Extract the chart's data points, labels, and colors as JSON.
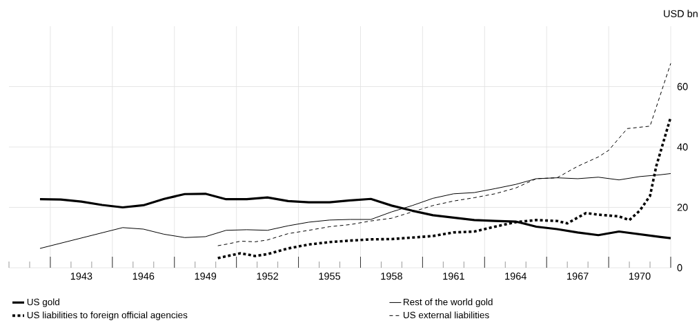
{
  "chart_data": {
    "type": "line",
    "ylabel": "USD bn",
    "xlim": [
      1939.5,
      1971.5
    ],
    "ylim": [
      0,
      80
    ],
    "xticks": [
      {
        "value": 1943,
        "label": "1943"
      },
      {
        "value": 1946,
        "label": "1946"
      },
      {
        "value": 1949,
        "label": "1949"
      },
      {
        "value": 1952,
        "label": "1952"
      },
      {
        "value": 1955,
        "label": "1955"
      },
      {
        "value": 1958,
        "label": "1958"
      },
      {
        "value": 1961,
        "label": "1961"
      },
      {
        "value": 1964,
        "label": "1964"
      },
      {
        "value": 1967,
        "label": "1967"
      },
      {
        "value": 1970,
        "label": "1970"
      },
      {
        "value": 1939.5,
        "label": null
      },
      {
        "value": 1940.5,
        "label": null
      },
      {
        "value": 1941.5,
        "label": null
      },
      {
        "value": 1942.5,
        "label": null
      },
      {
        "value": 1943.5,
        "label": null
      },
      {
        "value": 1944.5,
        "label": null
      },
      {
        "value": 1945.5,
        "label": null
      },
      {
        "value": 1946.5,
        "label": null
      },
      {
        "value": 1947.5,
        "label": null
      },
      {
        "value": 1948.5,
        "label": null
      },
      {
        "value": 1949.5,
        "label": null
      },
      {
        "value": 1950.5,
        "label": null
      },
      {
        "value": 1951.5,
        "label": null
      },
      {
        "value": 1952.5,
        "label": null
      },
      {
        "value": 1953.5,
        "label": null
      },
      {
        "value": 1954.5,
        "label": null
      },
      {
        "value": 1955.5,
        "label": null
      },
      {
        "value": 1956.5,
        "label": null
      },
      {
        "value": 1957.5,
        "label": null
      },
      {
        "value": 1958.5,
        "label": null
      },
      {
        "value": 1959.5,
        "label": null
      },
      {
        "value": 1960.5,
        "label": null
      },
      {
        "value": 1961.5,
        "label": null
      },
      {
        "value": 1962.5,
        "label": null
      },
      {
        "value": 1963.5,
        "label": null
      },
      {
        "value": 1964.5,
        "label": null
      },
      {
        "value": 1965.5,
        "label": null
      },
      {
        "value": 1966.5,
        "label": null
      },
      {
        "value": 1967.5,
        "label": null
      },
      {
        "value": 1968.5,
        "label": null
      },
      {
        "value": 1969.5,
        "label": null
      },
      {
        "value": 1970.5,
        "label": null
      },
      {
        "value": 1971.5,
        "label": null
      }
    ],
    "yticks": [
      0,
      20,
      40,
      60
    ],
    "grid": true,
    "legend": "bottom",
    "marker": "none",
    "series": [
      {
        "name": "US gold",
        "color": "#000000",
        "line_style": "solid",
        "x": [
          1941,
          1942,
          1943,
          1944,
          1945,
          1946,
          1947,
          1948,
          1949,
          1950,
          1951,
          1952,
          1953,
          1954,
          1955,
          1956,
          1957,
          1958,
          1959,
          1960,
          1961,
          1962,
          1963,
          1964,
          1965,
          1966,
          1967,
          1968,
          1969,
          1970,
          1971,
          1971.5
        ],
        "values": [
          22.7,
          22.6,
          21.9,
          20.8,
          20.0,
          20.7,
          22.8,
          24.4,
          24.5,
          22.7,
          22.7,
          23.3,
          22.1,
          21.7,
          21.7,
          22.3,
          22.8,
          20.6,
          18.9,
          17.4,
          16.6,
          15.8,
          15.5,
          15.3,
          13.6,
          12.8,
          11.7,
          10.8,
          12.0,
          11.1,
          10.2,
          9.8
        ]
      },
      {
        "name": "Rest of the world gold",
        "color": "#000000",
        "line_style": "solid",
        "x": [
          1941,
          1945,
          1946,
          1947,
          1948,
          1949,
          1950,
          1951,
          1952,
          1953,
          1954,
          1955,
          1956,
          1957,
          1958,
          1959,
          1960,
          1961,
          1962,
          1963,
          1964,
          1965,
          1966,
          1967,
          1968,
          1969,
          1970,
          1971,
          1971.5
        ],
        "values": [
          6.4,
          13.3,
          12.8,
          11.1,
          10.0,
          10.3,
          12.4,
          12.6,
          12.4,
          13.9,
          15.1,
          15.8,
          16.0,
          16.0,
          18.5,
          20.6,
          23.0,
          24.5,
          24.9,
          26.2,
          27.6,
          29.5,
          29.8,
          29.5,
          30.0,
          29.1,
          30.2,
          30.8,
          31.2
        ]
      },
      {
        "name": "US liabilities to foreign official agencies",
        "color": "#000000",
        "line_style": "dotted",
        "x": [
          1949.6,
          1950.7,
          1951.4,
          1952,
          1953,
          1954,
          1955,
          1956,
          1957,
          1958,
          1959,
          1960,
          1961,
          1962,
          1963,
          1964,
          1965,
          1966,
          1966.5,
          1967,
          1967.4,
          1968,
          1969,
          1969.5,
          1970,
          1970.5,
          1970.8,
          1971.5
        ],
        "values": [
          3.2,
          4.8,
          3.9,
          4.5,
          6.4,
          7.7,
          8.5,
          9.0,
          9.4,
          9.5,
          10.0,
          10.5,
          11.7,
          12.0,
          13.6,
          15.1,
          15.8,
          15.5,
          14.7,
          16.6,
          18.1,
          17.6,
          17.0,
          15.8,
          18.9,
          23.8,
          33.6,
          49.9
        ]
      },
      {
        "name": "US external liabilities",
        "color": "#000000",
        "line_style": "dashed",
        "x": [
          1949.6,
          1950.1,
          1950.7,
          1951.4,
          1952,
          1953,
          1954,
          1955,
          1956,
          1957,
          1958,
          1959,
          1960,
          1961,
          1962,
          1963,
          1964,
          1965,
          1966,
          1967,
          1968,
          1968.5,
          1969.4,
          1970.5,
          1971.5
        ],
        "values": [
          7.3,
          7.9,
          8.8,
          8.6,
          9.2,
          11.3,
          12.4,
          13.6,
          14.3,
          15.5,
          16.4,
          18.5,
          20.6,
          22.1,
          23.2,
          24.5,
          26.4,
          29.5,
          29.8,
          33.6,
          36.7,
          38.9,
          46.1,
          46.9,
          67.7
        ]
      }
    ]
  }
}
